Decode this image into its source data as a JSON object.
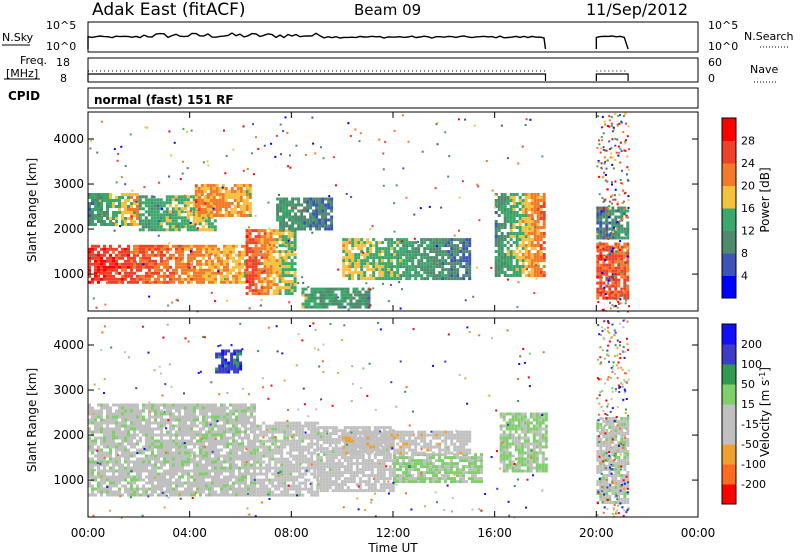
{
  "header": {
    "radar": "Adak East (fitACF)",
    "beam": "Beam 09",
    "date": "11/Sep/2012"
  },
  "params": {
    "nsky_label": "N.Sky",
    "nsky_ticks": [
      "10^5",
      "10^0"
    ],
    "nsearch_label": "N.Search",
    "nsearch_ticks": [
      "10^5",
      "10^0"
    ],
    "freq_label_line1": "Freq.",
    "freq_label_line2": "[MHz]",
    "freq_ticks": [
      "18",
      "8"
    ],
    "nave_label": "Nave",
    "nave_ticks": [
      "60",
      "0"
    ],
    "cpid_label": "CPID",
    "cpid_value": "normal (fast) 151 RF",
    "data_segments_hours": [
      [
        0.0,
        18.0
      ],
      [
        20.0,
        21.25
      ]
    ]
  },
  "chart_data": [
    {
      "type": "heatmap",
      "name": "power",
      "ylabel": "Slant Range [km]",
      "xlabel": "Time UT",
      "x_ticks": [
        "00:00",
        "04:00",
        "08:00",
        "12:00",
        "16:00",
        "20:00",
        "00:00"
      ],
      "xlim_hours": [
        0,
        24
      ],
      "y_ticks": [
        1000,
        2000,
        3000,
        4000
      ],
      "ylim_km": [
        180,
        4600
      ],
      "colorbar": {
        "label": "Power [dB]",
        "ticks": [
          4,
          8,
          12,
          16,
          20,
          24,
          28
        ],
        "range": [
          0,
          32
        ],
        "colors": [
          "#0000ff",
          "#3d55b8",
          "#4f8a6e",
          "#39a86a",
          "#f5c03c",
          "#f47a2a",
          "#f0402a",
          "#ff0000"
        ]
      },
      "bands": [
        {
          "t0": 0.0,
          "t1": 6.2,
          "r0": 800,
          "r1": 1650,
          "v0": 28,
          "v1": 18
        },
        {
          "t0": 0.0,
          "t1": 2.0,
          "r0": 2100,
          "r1": 2800,
          "v0": 10,
          "v1": 20
        },
        {
          "t0": 2.0,
          "t1": 5.0,
          "r0": 2000,
          "r1": 2750,
          "v0": 12,
          "v1": 18
        },
        {
          "t0": 4.2,
          "t1": 6.4,
          "r0": 2300,
          "r1": 3000,
          "v0": 22,
          "v1": 18
        },
        {
          "t0": 6.2,
          "t1": 8.1,
          "r0": 600,
          "r1": 2000,
          "v0": 26,
          "v1": 14
        },
        {
          "t0": 7.4,
          "t1": 9.6,
          "r0": 2000,
          "r1": 2700,
          "v0": 12,
          "v1": 8
        },
        {
          "t0": 8.4,
          "t1": 11.0,
          "r0": 300,
          "r1": 700,
          "v0": 14,
          "v1": 10
        },
        {
          "t0": 10.0,
          "t1": 15.0,
          "r0": 900,
          "r1": 1800,
          "v0": 18,
          "v1": 8
        },
        {
          "t0": 16.0,
          "t1": 18.0,
          "r0": 1000,
          "r1": 2800,
          "v0": 10,
          "v1": 24
        },
        {
          "t0": 20.0,
          "t1": 21.25,
          "r0": 500,
          "r1": 1700,
          "v0": 26,
          "v1": 24
        },
        {
          "t0": 20.0,
          "t1": 21.25,
          "r0": 1800,
          "r1": 2500,
          "v0": 8,
          "v1": 14
        }
      ]
    },
    {
      "type": "heatmap",
      "name": "velocity",
      "ylabel": "Slant Range [km]",
      "xlabel": "Time UT",
      "x_ticks": [
        "00:00",
        "04:00",
        "08:00",
        "12:00",
        "16:00",
        "20:00",
        "00:00"
      ],
      "xlim_hours": [
        0,
        24
      ],
      "y_ticks": [
        1000,
        2000,
        3000,
        4000
      ],
      "ylim_km": [
        180,
        4600
      ],
      "colorbar": {
        "label": "Velocity [m s^-1]",
        "ticks": [
          200,
          100,
          50,
          15,
          -15,
          -50,
          -100,
          -200
        ],
        "range": [
          -250,
          250
        ],
        "colors": [
          "#ff0000",
          "#ff6a1e",
          "#f0a030",
          "#c0c0c0",
          "#c0c0c0",
          "#7fd06a",
          "#2f9a50",
          "#3c3cc8",
          "#1010ff"
        ]
      },
      "bands": [
        {
          "t0": 0.0,
          "t1": 6.5,
          "r0": 700,
          "r1": 2700,
          "v0": 0,
          "v1": 0
        },
        {
          "t0": 6.5,
          "t1": 9.0,
          "r0": 700,
          "r1": 2300,
          "v0": 0,
          "v1": -20
        },
        {
          "t0": 9.0,
          "t1": 12.0,
          "r0": 800,
          "r1": 2200,
          "v0": -10,
          "v1": -30
        },
        {
          "t0": 12.0,
          "t1": 15.5,
          "r0": 1000,
          "r1": 1600,
          "v0": 40,
          "v1": 35
        },
        {
          "t0": 10.0,
          "t1": 15.0,
          "r0": 1600,
          "r1": 2100,
          "v0": -50,
          "v1": -40
        },
        {
          "t0": 16.2,
          "t1": 18.0,
          "r0": 1200,
          "r1": 2500,
          "v0": 40,
          "v1": 30
        },
        {
          "t0": 20.0,
          "t1": 21.25,
          "r0": 500,
          "r1": 2400,
          "v0": 0,
          "v1": 0
        },
        {
          "t0": 5.0,
          "t1": 6.0,
          "r0": 3400,
          "r1": 3900,
          "v0": 180,
          "v1": 160
        }
      ]
    }
  ]
}
